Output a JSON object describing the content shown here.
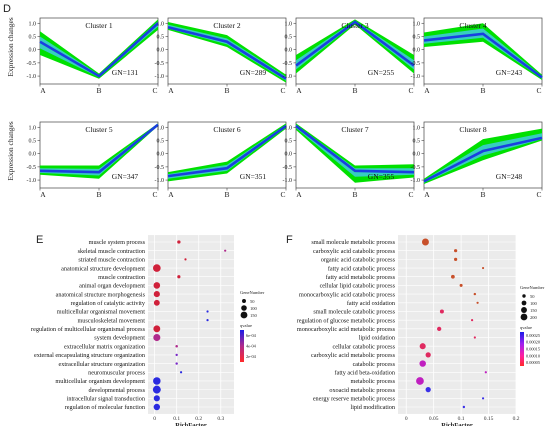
{
  "panel_labels": {
    "top": "D",
    "bottom_left": "E",
    "bottom_right": "F"
  },
  "colors": {
    "band": "#00e000",
    "mean": "#1a3fe0",
    "mean_light": "#48c8ff",
    "dot_high": "#ff2a2a",
    "dot_low": "#1c1ce8",
    "dot_mid": "#b02a8c",
    "dot_high_F": "#b8542a"
  },
  "chart_data": [
    {
      "type": "line",
      "panel": "D",
      "ylabel": "Expression changes",
      "x_ticks": [
        "A",
        "B",
        "C"
      ],
      "y_ticks": [
        "1.0",
        "0.5",
        "0.0",
        "-0.5",
        "-1.0"
      ],
      "ylim": [
        -1.3,
        1.2
      ],
      "clusters": [
        {
          "title": "Cluster 1",
          "gn": "GN=131",
          "mean": [
            0.3,
            -1.0,
            1.0
          ],
          "upper": [
            0.7,
            -0.9,
            1.15
          ],
          "lower": [
            -0.2,
            -1.1,
            0.75
          ]
        },
        {
          "title": "Cluster 2",
          "gn": "GN=289",
          "mean": [
            0.85,
            0.3,
            -1.1
          ],
          "upper": [
            1.05,
            0.55,
            -0.95
          ],
          "lower": [
            0.75,
            0.1,
            -1.25
          ]
        },
        {
          "title": "Cluster 3",
          "gn": "GN=255",
          "mean": [
            -0.6,
            1.05,
            -0.6
          ],
          "upper": [
            -0.2,
            1.15,
            -0.2
          ],
          "lower": [
            -0.9,
            0.95,
            -0.9
          ]
        },
        {
          "title": "Cluster 4",
          "gn": "GN=243",
          "mean": [
            0.35,
            0.6,
            -1.05
          ],
          "upper": [
            0.65,
            1.0,
            -0.95
          ],
          "lower": [
            0.1,
            0.3,
            -1.15
          ]
        },
        {
          "title": "Cluster 5",
          "gn": "GN=347",
          "mean": [
            -0.65,
            -0.7,
            1.1
          ],
          "upper": [
            -0.45,
            -0.45,
            1.15
          ],
          "lower": [
            -0.8,
            -0.95,
            1.05
          ]
        },
        {
          "title": "Cluster 6",
          "gn": "GN=351",
          "mean": [
            -0.85,
            -0.55,
            1.05
          ],
          "upper": [
            -0.7,
            -0.3,
            1.15
          ],
          "lower": [
            -1.05,
            -0.75,
            0.95
          ]
        },
        {
          "title": "Cluster 7",
          "gn": "GN=355",
          "mean": [
            1.05,
            -0.65,
            -0.7
          ],
          "upper": [
            1.15,
            -0.45,
            -0.4
          ],
          "lower": [
            0.9,
            -1.1,
            -0.9
          ]
        },
        {
          "title": "Cluster 8",
          "gn": "GN=248",
          "mean": [
            -1.05,
            0.1,
            0.6
          ],
          "upper": [
            -0.95,
            0.55,
            0.95
          ],
          "lower": [
            -1.15,
            -0.25,
            0.5
          ]
        }
      ]
    },
    {
      "type": "scatter",
      "panel": "E",
      "xlabel": "RichFactor",
      "x_ticks": [
        0.0,
        0.1,
        0.2,
        0.3
      ],
      "xlim": [
        -0.03,
        0.36
      ],
      "legend": {
        "size_title": "GeneNumber",
        "size_values": [
          50,
          100,
          150
        ],
        "color_title": "qvalue",
        "color_ticks": [
          "6e-04",
          "4e-04",
          "2e-04"
        ]
      },
      "terms": [
        {
          "label": "muscle system process",
          "x": 0.11,
          "size": 35,
          "q": 6e-05
        },
        {
          "label": "skeletal muscle contraction",
          "x": 0.32,
          "size": 8,
          "q": 0.0003
        },
        {
          "label": "striated muscle contraction",
          "x": 0.14,
          "size": 12,
          "q": 0.0002
        },
        {
          "label": "anatomical structure development",
          "x": 0.01,
          "size": 190,
          "q": 2e-05
        },
        {
          "label": "muscle contraction",
          "x": 0.11,
          "size": 32,
          "q": 5e-05
        },
        {
          "label": "animal organ development",
          "x": 0.01,
          "size": 140,
          "q": 4e-05
        },
        {
          "label": "anatomical structure morphogenesis",
          "x": 0.01,
          "size": 120,
          "q": 0.0001
        },
        {
          "label": "regulation of catalytic activity",
          "x": 0.01,
          "size": 110,
          "q": 0.00015
        },
        {
          "label": "multicellular organismal movement",
          "x": 0.24,
          "size": 6,
          "q": 0.0005
        },
        {
          "label": "musculoskeletal movement",
          "x": 0.24,
          "size": 6,
          "q": 0.0005
        },
        {
          "label": "regulation of multicellular organismal process",
          "x": 0.01,
          "size": 150,
          "q": 0.0002
        },
        {
          "label": "system development",
          "x": 0.01,
          "size": 160,
          "q": 0.0003
        },
        {
          "label": "extracellular matrix organization",
          "x": 0.1,
          "size": 20,
          "q": 0.0003
        },
        {
          "label": "external encapsulating structure organization",
          "x": 0.1,
          "size": 18,
          "q": 0.0004
        },
        {
          "label": "extracellular structure organization",
          "x": 0.1,
          "size": 18,
          "q": 0.0004
        },
        {
          "label": "neuromuscular process",
          "x": 0.12,
          "size": 10,
          "q": 0.0005
        },
        {
          "label": "multicellular organism development",
          "x": 0.01,
          "size": 180,
          "q": 0.0005
        },
        {
          "label": "developmental process",
          "x": 0.01,
          "size": 200,
          "q": 0.00055
        },
        {
          "label": "intracellular signal transduction",
          "x": 0.01,
          "size": 120,
          "q": 0.0006
        },
        {
          "label": "regulation of molecular function",
          "x": 0.01,
          "size": 130,
          "q": 0.0006
        }
      ]
    },
    {
      "type": "scatter",
      "panel": "F",
      "xlabel": "RichFactor",
      "x_ticks": [
        0.0,
        0.05,
        0.1,
        0.15,
        0.2
      ],
      "xlim": [
        -0.015,
        0.2
      ],
      "legend": {
        "size_title": "GeneNumber",
        "size_values": [
          50,
          100,
          150,
          200
        ],
        "color_title": "qvalue",
        "color_ticks": [
          "0.00025",
          "0.00020",
          "0.00015",
          "0.00010",
          "0.00005"
        ]
      },
      "terms": [
        {
          "label": "small molecule metabolic process",
          "x": 0.035,
          "size": 210,
          "q": 1e-05
        },
        {
          "label": "carboxylic acid catabolic process",
          "x": 0.09,
          "size": 45,
          "q": 3e-05
        },
        {
          "label": "organic acid catabolic process",
          "x": 0.09,
          "size": 45,
          "q": 3e-05
        },
        {
          "label": "fatty acid catabolic process",
          "x": 0.14,
          "size": 20,
          "q": 4e-05
        },
        {
          "label": "fatty acid metabolic process",
          "x": 0.085,
          "size": 60,
          "q": 4e-05
        },
        {
          "label": "cellular lipid catabolic process",
          "x": 0.1,
          "size": 40,
          "q": 5e-05
        },
        {
          "label": "monocarboxylic acid catabolic process",
          "x": 0.125,
          "size": 25,
          "q": 6e-05
        },
        {
          "label": "fatty acid oxidation",
          "x": 0.13,
          "size": 20,
          "q": 8e-05
        },
        {
          "label": "small molecule catabolic process",
          "x": 0.065,
          "size": 70,
          "q": 9e-05
        },
        {
          "label": "regulation of glucose metabolic process",
          "x": 0.12,
          "size": 20,
          "q": 0.0001
        },
        {
          "label": "monocarboxylic acid metabolic process",
          "x": 0.06,
          "size": 80,
          "q": 0.0001
        },
        {
          "label": "lipid oxidation",
          "x": 0.125,
          "size": 20,
          "q": 0.00012
        },
        {
          "label": "cellular catabolic process",
          "x": 0.03,
          "size": 160,
          "q": 0.00015
        },
        {
          "label": "carboxylic acid metabolic process",
          "x": 0.04,
          "size": 120,
          "q": 0.00015
        },
        {
          "label": "catabolic process",
          "x": 0.03,
          "size": 180,
          "q": 0.00018
        },
        {
          "label": "fatty acid beta-oxidation",
          "x": 0.145,
          "size": 15,
          "q": 0.0002
        },
        {
          "label": "metabolic process",
          "x": 0.025,
          "size": 260,
          "q": 0.00022
        },
        {
          "label": "oxoacid metabolic process",
          "x": 0.04,
          "size": 120,
          "q": 0.00023
        },
        {
          "label": "energy reserve metabolic process",
          "x": 0.14,
          "size": 15,
          "q": 0.00025
        },
        {
          "label": "lipid modification",
          "x": 0.105,
          "size": 25,
          "q": 0.00028
        }
      ]
    }
  ]
}
